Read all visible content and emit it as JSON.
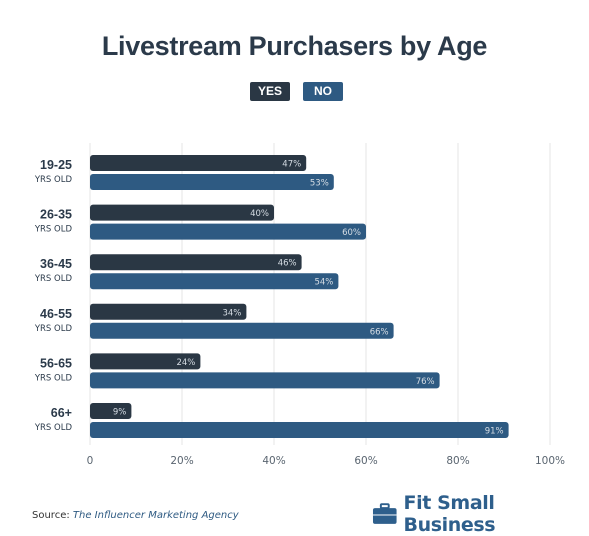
{
  "title": "Livestream Purchasers by Age",
  "legend": [
    {
      "label": "YES",
      "color": "#2a3744"
    },
    {
      "label": "NO",
      "color": "#2e5a82"
    }
  ],
  "source": {
    "prefix": "Source:",
    "name": "The Influencer Marketing Agency"
  },
  "brand": {
    "name": "Fit Small Business",
    "icon": "briefcase-icon"
  },
  "chart_data": {
    "type": "bar",
    "orientation": "horizontal",
    "categories": [
      {
        "label": "19-25",
        "sublabel": "YRS OLD"
      },
      {
        "label": "26-35",
        "sublabel": "YRS OLD"
      },
      {
        "label": "36-45",
        "sublabel": "YRS OLD"
      },
      {
        "label": "46-55",
        "sublabel": "YRS OLD"
      },
      {
        "label": "56-65",
        "sublabel": "YRS OLD"
      },
      {
        "label": "66+",
        "sublabel": "YRS OLD"
      }
    ],
    "series": [
      {
        "name": "YES",
        "color": "#2a3744",
        "values": [
          47,
          40,
          46,
          34,
          24,
          9
        ]
      },
      {
        "name": "NO",
        "color": "#2e5a82",
        "values": [
          53,
          60,
          54,
          66,
          76,
          91
        ]
      }
    ],
    "value_suffix": "%",
    "xlim": [
      0,
      100
    ],
    "xticks": [
      "0",
      "20%",
      "40%",
      "60%",
      "80%",
      "100%"
    ],
    "grid": true,
    "legend_position": "top-center"
  }
}
